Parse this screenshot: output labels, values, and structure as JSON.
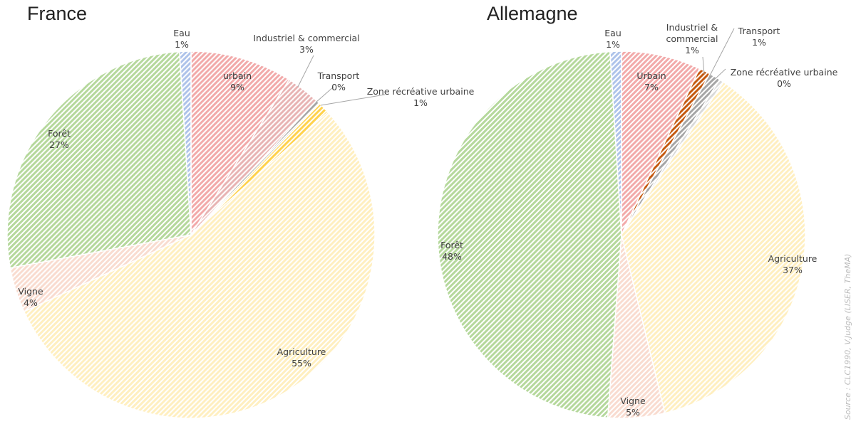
{
  "chart_data": [
    {
      "type": "pie",
      "title": "France",
      "categories": [
        "urbain",
        "Industriel & commercial",
        "Transport",
        "Zone récréative urbaine",
        "Agriculture",
        "Vigne",
        "Forêt",
        "Eau"
      ],
      "values": [
        9,
        3,
        0.4,
        1,
        55,
        4,
        27,
        1
      ],
      "value_labels": [
        "9%",
        "3%",
        "0%",
        "1%",
        "55%",
        "4%",
        "27%",
        "1%"
      ],
      "colors": [
        "#f2aaaa",
        "#e8b4b4",
        "#a6a6a6",
        "#ffd24d",
        "#ffefc0",
        "#f9dcd0",
        "#b5d89c",
        "#aec3ea"
      ]
    },
    {
      "type": "pie",
      "title": "Allemagne",
      "categories": [
        "Urbain",
        "Industriel & commercial",
        "Transport",
        "Zone récréative urbaine",
        "Agriculture",
        "Vigne",
        "Forêt",
        "Eau"
      ],
      "values": [
        7,
        1,
        1,
        0.4,
        37,
        5,
        48,
        1
      ],
      "value_labels": [
        "7%",
        "1%",
        "1%",
        "0%",
        "37%",
        "5%",
        "48%",
        "1%"
      ],
      "colors": [
        "#f2aaaa",
        "#c55a11",
        "#a6a6a6",
        "#d9d9d9",
        "#ffefc0",
        "#f9dcd0",
        "#b5d89c",
        "#aec3ea"
      ]
    }
  ],
  "source": "Source : CLC1990, V.Judge (LISER, TheMA)"
}
